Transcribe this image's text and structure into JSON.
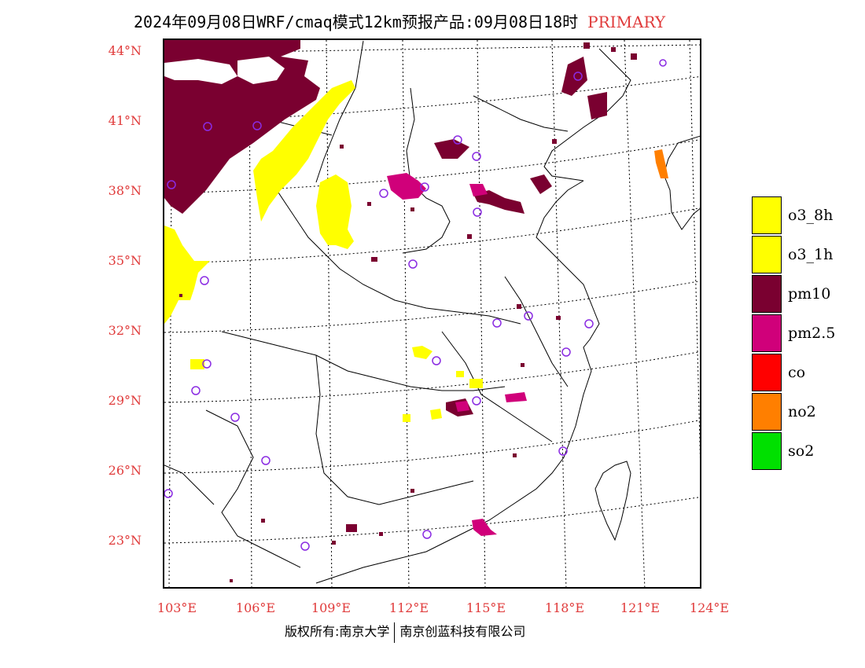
{
  "title": "2024年09月08日WRF/cmaq模式12km预报产品:09月08日18时",
  "title_tag": "PRIMARY",
  "lat_labels": [
    "44°N",
    "41°N",
    "38°N",
    "35°N",
    "32°N",
    "29°N",
    "26°N",
    "23°N"
  ],
  "lon_labels": [
    "103°E",
    "106°E",
    "109°E",
    "112°E",
    "115°E",
    "118°E",
    "121°E",
    "124°E"
  ],
  "legend": [
    {
      "label": "o3_8h",
      "color": "#ffff00"
    },
    {
      "label": "o3_1h",
      "color": "#ffff00"
    },
    {
      "label": "pm10",
      "color": "#7a0030"
    },
    {
      "label": "pm2.5",
      "color": "#d0007a"
    },
    {
      "label": "co",
      "color": "#ff0000"
    },
    {
      "label": "no2",
      "color": "#ff7f00"
    },
    {
      "label": "so2",
      "color": "#00e000"
    }
  ],
  "footer": {
    "left": "版权所有:南京大学",
    "right": "南京创蓝科技有限公司"
  },
  "colors": {
    "label_red": "#e03b3b",
    "station_marker": "#8a2be2"
  }
}
